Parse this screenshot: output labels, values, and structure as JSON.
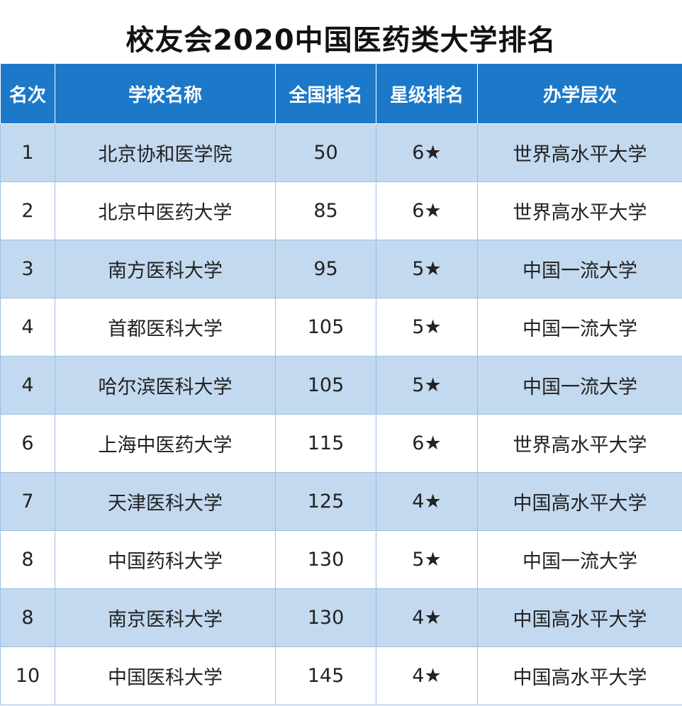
{
  "title": "校友会2020中国医药类大学排名",
  "table": {
    "headers": [
      "名次",
      "学校名称",
      "全国排名",
      "星级排名",
      "办学层次"
    ],
    "rows": [
      {
        "rank": "1",
        "name": "北京协和医学院",
        "national": "50",
        "stars": "6★",
        "level": "世界高水平大学"
      },
      {
        "rank": "2",
        "name": "北京中医药大学",
        "national": "85",
        "stars": "6★",
        "level": "世界高水平大学"
      },
      {
        "rank": "3",
        "name": "南方医科大学",
        "national": "95",
        "stars": "5★",
        "level": "中国一流大学"
      },
      {
        "rank": "4",
        "name": "首都医科大学",
        "national": "105",
        "stars": "5★",
        "level": "中国一流大学"
      },
      {
        "rank": "4",
        "name": "哈尔滨医科大学",
        "national": "105",
        "stars": "5★",
        "level": "中国一流大学"
      },
      {
        "rank": "6",
        "name": "上海中医药大学",
        "national": "115",
        "stars": "6★",
        "level": "世界高水平大学"
      },
      {
        "rank": "7",
        "name": "天津医科大学",
        "national": "125",
        "stars": "4★",
        "level": "中国高水平大学"
      },
      {
        "rank": "8",
        "name": "中国药科大学",
        "national": "130",
        "stars": "5★",
        "level": "中国一流大学"
      },
      {
        "rank": "8",
        "name": "南京医科大学",
        "national": "130",
        "stars": "4★",
        "level": "中国高水平大学"
      },
      {
        "rank": "10",
        "name": "中国医科大学",
        "national": "145",
        "stars": "4★",
        "level": "中国高水平大学"
      }
    ]
  },
  "colors": {
    "header_bg": "#1c78c8",
    "row_alt_bg": "#c3d9ef",
    "row_bg": "#ffffff"
  }
}
